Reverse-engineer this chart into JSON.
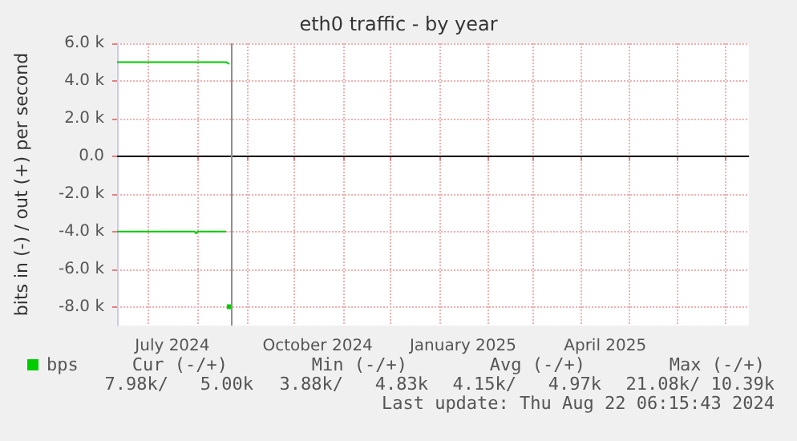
{
  "chart_data": {
    "type": "line",
    "title": "eth0 traffic - by year",
    "ylabel": "bits in (-) / out (+) per second",
    "xlim": [
      "2024-06-11",
      "2025-07-16"
    ],
    "xticks": [
      {
        "value": "2024-07-01",
        "label": null
      },
      {
        "value": "2024-07-16",
        "label": "July 2024"
      },
      {
        "value": "2024-08-01",
        "label": null
      },
      {
        "value": "2024-09-01",
        "label": null
      },
      {
        "value": "2024-10-01",
        "label": null
      },
      {
        "value": "2024-10-16",
        "label": "October 2024"
      },
      {
        "value": "2024-11-01",
        "label": null
      },
      {
        "value": "2024-12-01",
        "label": null
      },
      {
        "value": "2025-01-01",
        "label": null
      },
      {
        "value": "2025-01-16",
        "label": "January 2025"
      },
      {
        "value": "2025-02-01",
        "label": null
      },
      {
        "value": "2025-03-01",
        "label": null
      },
      {
        "value": "2025-04-01",
        "label": null
      },
      {
        "value": "2025-04-16",
        "label": "April 2025"
      },
      {
        "value": "2025-05-01",
        "label": null
      },
      {
        "value": "2025-06-01",
        "label": null
      },
      {
        "value": "2025-07-01",
        "label": null
      }
    ],
    "ylim": [
      -9000,
      6000
    ],
    "yticks": [
      {
        "value": -8000,
        "label": "-8.0 k"
      },
      {
        "value": -6000,
        "label": "-6.0 k"
      },
      {
        "value": -4000,
        "label": "-4.0 k"
      },
      {
        "value": -2000,
        "label": "-2.0 k"
      },
      {
        "value": 0,
        "label": "0.0"
      },
      {
        "value": 2000,
        "label": "2.0 k"
      },
      {
        "value": 4000,
        "label": "4.0 k"
      },
      {
        "value": 6000,
        "label": "6.0 k"
      }
    ],
    "grid": true,
    "legend": "bottom left",
    "marker": "none",
    "series": [
      {
        "name": "bps",
        "color": "#00cc00",
        "x": [
          "2024-06-11",
          "2024-08-19",
          "2024-08-21"
        ],
        "values": [
          5000,
          5000,
          4900
        ]
      },
      {
        "color": "#00cc00",
        "x": [
          "2024-06-11",
          "2024-07-30",
          "2024-07-31",
          "2024-08-01",
          "2024-08-19",
          "2024-08-20",
          "2024-08-21"
        ],
        "values": [
          -4000,
          -4000,
          -4100,
          -4000,
          -4000,
          null,
          -8000
        ]
      }
    ],
    "ref_lines": [
      {
        "axis": "y",
        "value": 0,
        "color": "#000000"
      },
      {
        "axis": "x",
        "value": "2024-08-22T06:15",
        "color": "#909090"
      }
    ],
    "annotations": [
      "Cur (-/+)",
      "Min (-/+)",
      "Avg (-/+)",
      "Max (-/+)",
      "7.98k/   5.00k",
      "3.88k/   4.83k",
      "4.15k/   4.97k",
      "21.08k/ 10.39k",
      "Last update: Thu Aug 22 06:15:43 2024"
    ]
  }
}
